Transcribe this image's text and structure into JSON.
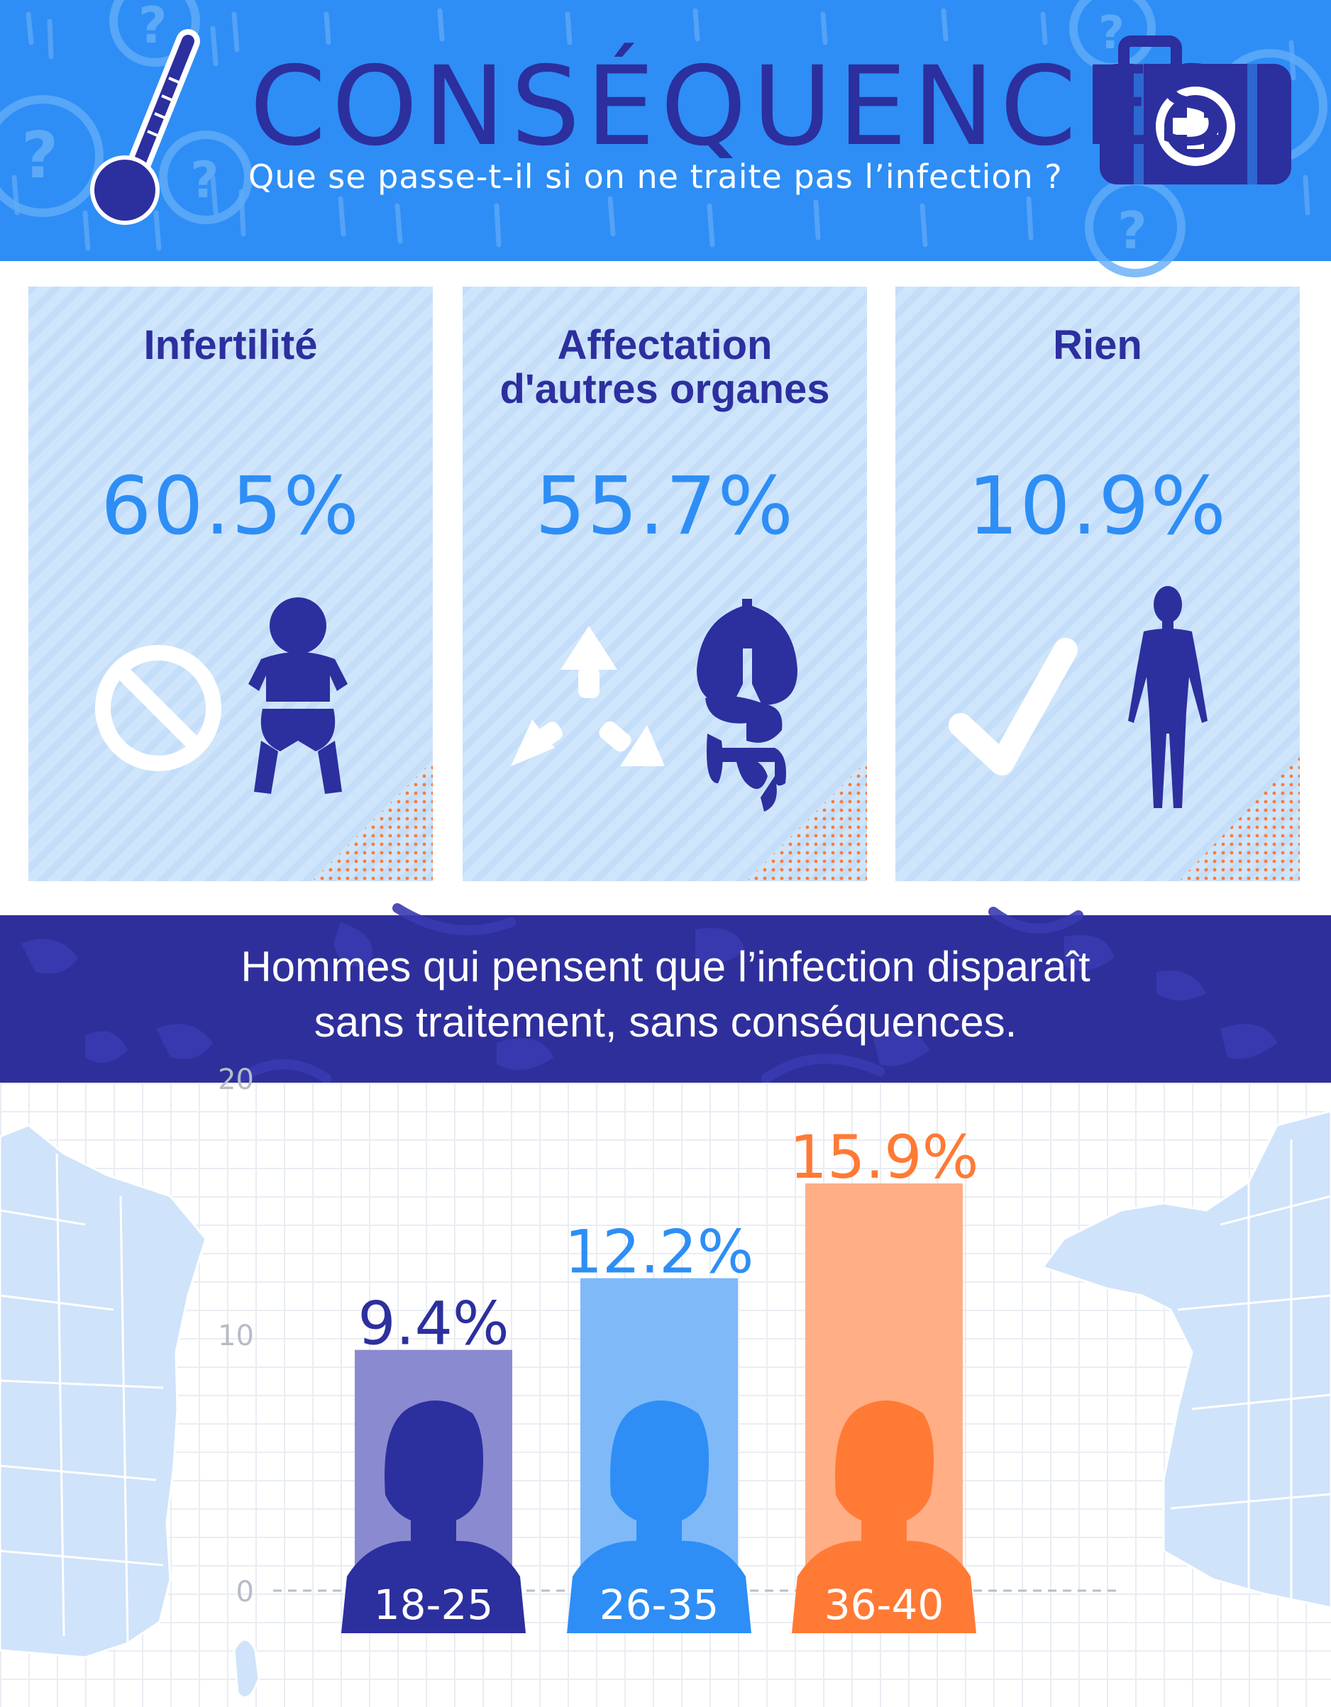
{
  "header": {
    "title": "CONSÉQUENCES",
    "subtitle": "Que se passe-t-il si on ne traite pas l’infection ?",
    "icons": [
      "thermometer-icon",
      "first-aid-kit-icon",
      "question-mark-icon"
    ]
  },
  "cards": [
    {
      "title_lines": [
        "Infertilité"
      ],
      "value": "60.5%",
      "icons": [
        "prohibited-icon",
        "baby-icon"
      ]
    },
    {
      "title_lines": [
        "Affectation",
        "d'autres organes"
      ],
      "value": "55.7%",
      "icons": [
        "recycle-arrows-icon",
        "organs-icon"
      ]
    },
    {
      "title_lines": [
        "Rien"
      ],
      "value": "10.9%",
      "icons": [
        "checkmark-icon",
        "human-body-icon"
      ]
    }
  ],
  "banner": {
    "lines": [
      "Hommes qui pensent que l’infection disparaît",
      "sans traitement, sans conséquences."
    ]
  },
  "colors": {
    "header_bg": "#2e8ef5",
    "dark_blue": "#2c2f9e",
    "card_bg": "#cfe5fb",
    "accent_orange": "#ff7a35"
  },
  "chart_data": {
    "type": "bar",
    "categories": [
      "18-25",
      "26-35",
      "36-40"
    ],
    "values": [
      9.4,
      12.2,
      15.9
    ],
    "value_labels": [
      "9.4%",
      "12.2%",
      "15.9%"
    ],
    "y_ticks": [
      "0",
      "10",
      "20"
    ],
    "ylim": [
      0,
      20
    ],
    "grid": true,
    "bar_colors": [
      "#8a8ad0",
      "#7fb9f8",
      "#ffae86"
    ],
    "label_colors": [
      "#2c2f9e",
      "#2e8ef5",
      "#ff7a35"
    ],
    "head_colors": [
      "#2c2f9e",
      "#2e8ef5",
      "#ff7a35"
    ]
  }
}
